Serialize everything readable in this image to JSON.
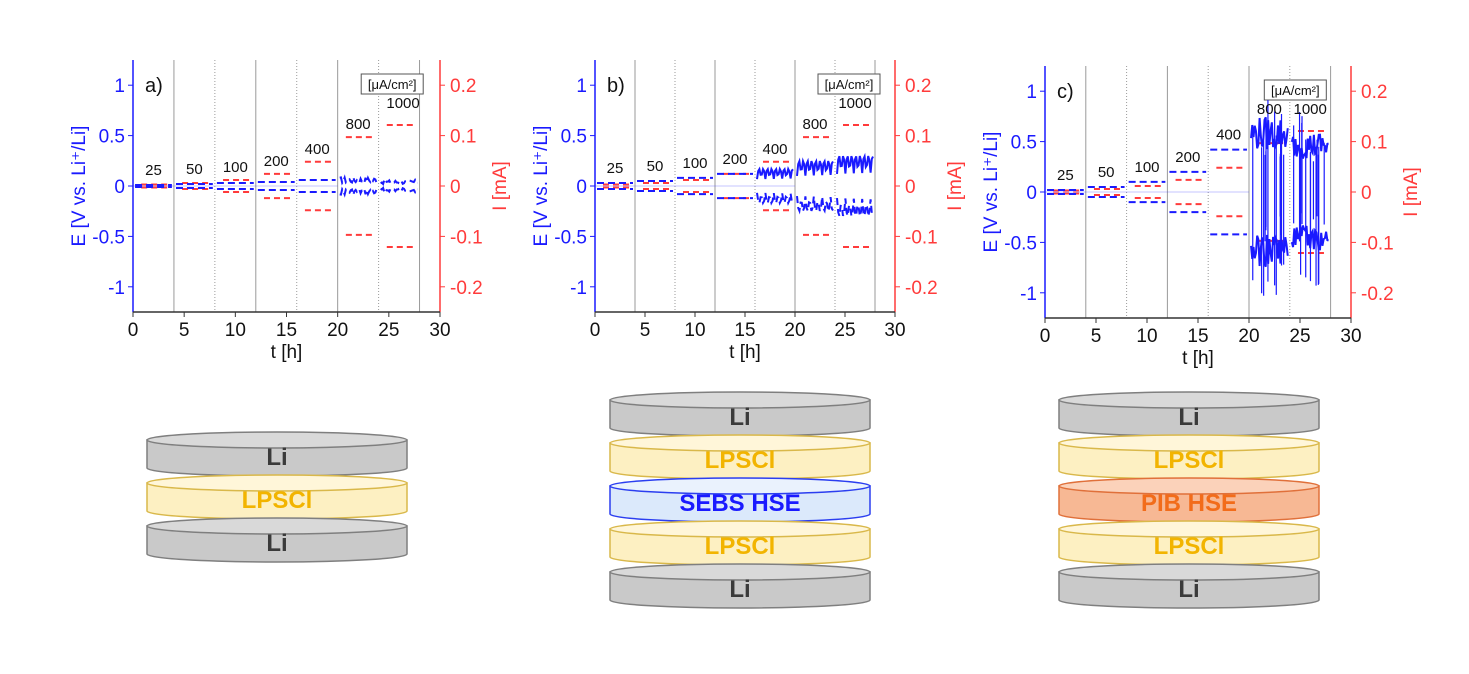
{
  "chart_data": [
    {
      "type": "line",
      "panel_label": "a)",
      "xlabel": "t [h]",
      "ylabel_left": "E [V vs. Li⁺/Li]",
      "ylabel_right": "I [mA]",
      "xlim": [
        0,
        30
      ],
      "ylim_left": [
        -1.25,
        1.25
      ],
      "ylim_right": [
        -0.25,
        0.25
      ],
      "xticks": [
        "0",
        "5",
        "10",
        "15",
        "20",
        "25",
        "30"
      ],
      "yticks_left": [
        "-1",
        "-0.5",
        "0",
        "0.5",
        "1"
      ],
      "yticks_right": [
        "-0.2",
        "-0.1",
        "0",
        "0.1",
        "0.2"
      ],
      "vlines_h": [
        4,
        8,
        12,
        16,
        20,
        24,
        28
      ],
      "current_density_unit": "[μA/cm²]",
      "current_density_labels": [
        "25",
        "50",
        "100",
        "200",
        "400",
        "800",
        "1000"
      ],
      "current_mA": [
        0.003,
        0.006,
        0.012,
        0.024,
        0.048,
        0.097,
        0.121
      ],
      "voltage_V": [
        0.01,
        0.02,
        0.03,
        0.04,
        0.06,
        0.09,
        0.06
      ],
      "series": [
        {
          "name": "E",
          "axis": "left",
          "color": "#1a1aff"
        },
        {
          "name": "I",
          "axis": "right",
          "color": "#ff3b3b"
        }
      ]
    },
    {
      "type": "line",
      "panel_label": "b)",
      "xlabel": "t [h]",
      "ylabel_left": "E [V vs. Li⁺/Li]",
      "ylabel_right": "I [mA]",
      "xlim": [
        0,
        30
      ],
      "ylim_left": [
        -1.25,
        1.25
      ],
      "ylim_right": [
        -0.25,
        0.25
      ],
      "xticks": [
        "0",
        "5",
        "10",
        "15",
        "20",
        "25",
        "30"
      ],
      "yticks_left": [
        "-1",
        "-0.5",
        "0",
        "0.5",
        "1"
      ],
      "yticks_right": [
        "-0.2",
        "-0.1",
        "0",
        "0.1",
        "0.2"
      ],
      "vlines_h": [
        4,
        8,
        12,
        16,
        20,
        24,
        28
      ],
      "current_density_unit": "[μA/cm²]",
      "current_density_labels": [
        "25",
        "50",
        "100",
        "200",
        "400",
        "800",
        "1000"
      ],
      "current_mA": [
        0.003,
        0.006,
        0.012,
        0.024,
        0.048,
        0.097,
        0.121
      ],
      "voltage_V": [
        0.03,
        0.05,
        0.08,
        0.12,
        0.17,
        0.25,
        0.3
      ],
      "series": [
        {
          "name": "E",
          "axis": "left",
          "color": "#1a1aff"
        },
        {
          "name": "I",
          "axis": "right",
          "color": "#ff3b3b"
        }
      ]
    },
    {
      "type": "line",
      "panel_label": "c)",
      "xlabel": "t [h]",
      "ylabel_left": "E [V vs. Li⁺/Li]",
      "ylabel_right": "I [mA]",
      "xlim": [
        0,
        30
      ],
      "ylim_left": [
        -1.25,
        1.25
      ],
      "ylim_right": [
        -0.25,
        0.25
      ],
      "xticks": [
        "0",
        "5",
        "10",
        "15",
        "20",
        "25",
        "30"
      ],
      "yticks_left": [
        "-1",
        "-0.5",
        "0",
        "0.5",
        "1"
      ],
      "yticks_right": [
        "-0.2",
        "-0.1",
        "0",
        "0.1",
        "0.2"
      ],
      "vlines_h": [
        4,
        8,
        12,
        16,
        20,
        24,
        28
      ],
      "current_density_unit": "[μA/cm²]",
      "current_density_labels": [
        "25",
        "50",
        "100",
        "200",
        "400",
        "800",
        "1000"
      ],
      "current_mA": [
        0.003,
        0.006,
        0.012,
        0.024,
        0.048,
        0.097,
        0.121
      ],
      "voltage_V": [
        0.02,
        0.05,
        0.1,
        0.2,
        0.42,
        0.75,
        0.6
      ],
      "series": [
        {
          "name": "E",
          "axis": "left",
          "color": "#1a1aff"
        },
        {
          "name": "I",
          "axis": "right",
          "color": "#ff3b3b"
        }
      ]
    }
  ],
  "cell_stacks": [
    {
      "layers": [
        {
          "label": "Li",
          "kind": "li"
        },
        {
          "label": "LPSCl",
          "kind": "lpscl"
        },
        {
          "label": "Li",
          "kind": "li"
        }
      ]
    },
    {
      "layers": [
        {
          "label": "Li",
          "kind": "li"
        },
        {
          "label": "LPSCl",
          "kind": "lpscl"
        },
        {
          "label": "SEBS HSE",
          "kind": "sebs"
        },
        {
          "label": "LPSCl",
          "kind": "lpscl"
        },
        {
          "label": "Li",
          "kind": "li"
        }
      ]
    },
    {
      "layers": [
        {
          "label": "Li",
          "kind": "li"
        },
        {
          "label": "LPSCl",
          "kind": "lpscl"
        },
        {
          "label": "PIB HSE",
          "kind": "pib"
        },
        {
          "label": "LPSCl",
          "kind": "lpscl"
        },
        {
          "label": "Li",
          "kind": "li"
        }
      ]
    }
  ],
  "layer_styles": {
    "li": {
      "fill": "#c9c9c9",
      "top": "#d9d9d9",
      "stroke": "#7f7f7f",
      "text": "#3a3a3a"
    },
    "lpscl": {
      "fill": "#fdf0c2",
      "top": "#fff6d9",
      "stroke": "#d9b84a",
      "text": "#f2b400"
    },
    "sebs": {
      "fill": "#dbe9fb",
      "top": "#eaf2fd",
      "stroke": "#2b3ef0",
      "text": "#1a1aff"
    },
    "pib": {
      "fill": "#f7b894",
      "top": "#fbd2ba",
      "stroke": "#e0703a",
      "text": "#f26c1a"
    }
  },
  "colors": {
    "voltage": "#1a1aff",
    "current": "#ff3b3b",
    "vline": "#9a9a9a"
  }
}
